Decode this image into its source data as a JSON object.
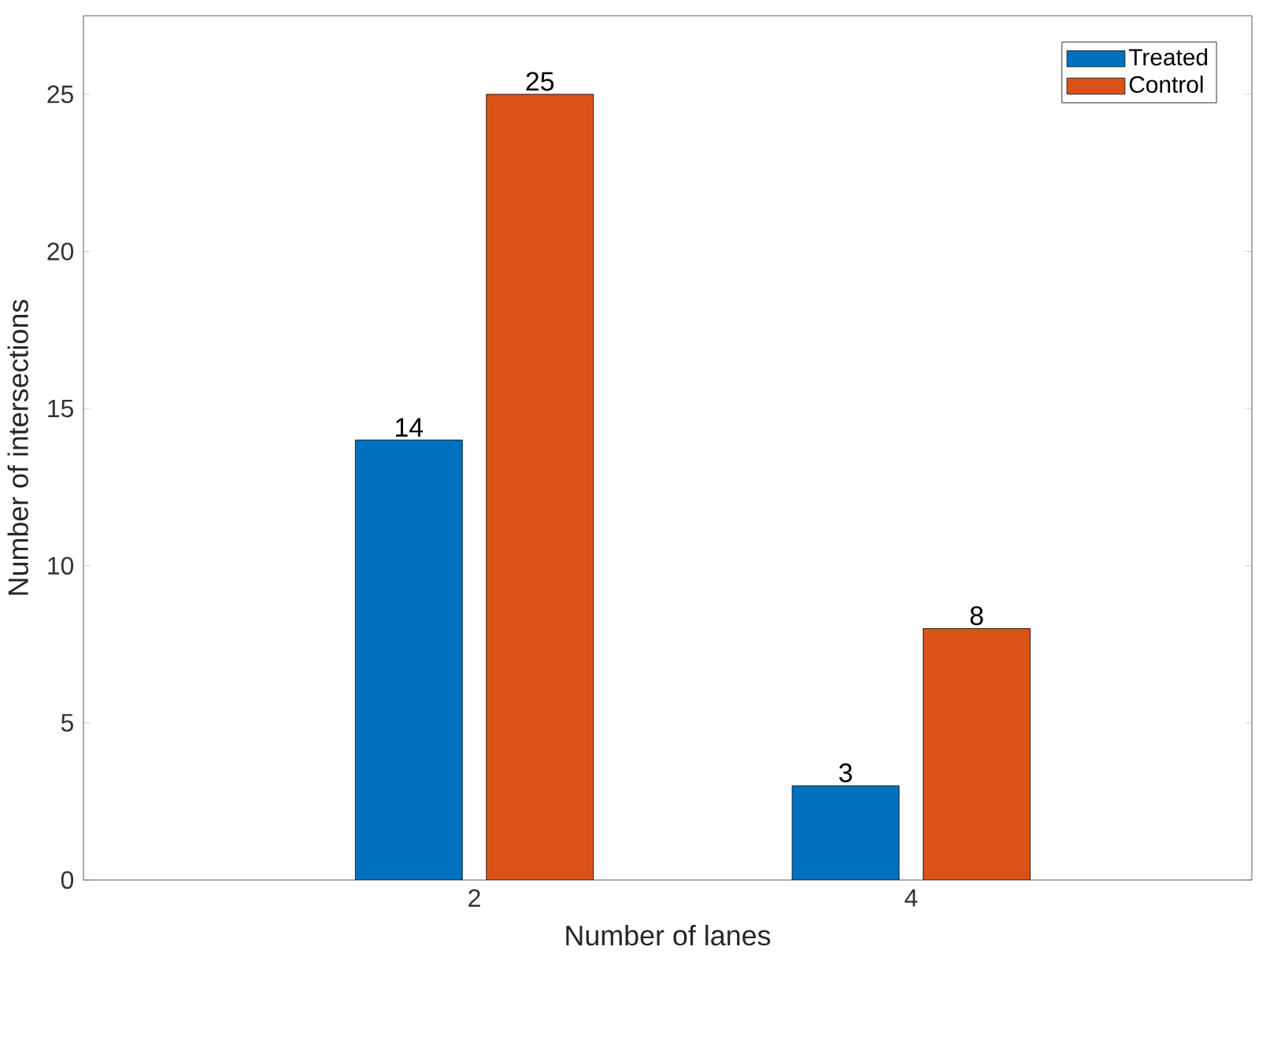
{
  "chart_data": {
    "type": "bar",
    "xlabel": "Number of lanes",
    "ylabel": "Number of intersections",
    "categories": [
      "2",
      "4"
    ],
    "series": [
      {
        "name": "Treated",
        "color": "#0072bd",
        "values": [
          14,
          3
        ]
      },
      {
        "name": "Control",
        "color": "#d95319",
        "values": [
          25,
          8
        ]
      }
    ],
    "ylim": [
      0,
      27.5
    ],
    "yticks": [
      0,
      5,
      10,
      15,
      20,
      25
    ],
    "data_labels": true,
    "legend": "top right"
  }
}
